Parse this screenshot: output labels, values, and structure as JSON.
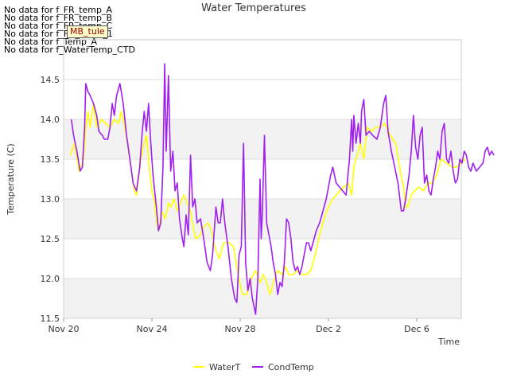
{
  "no_data_messages": [
    "No data for f_FR_temp_A",
    "No data for f_FR_temp_B",
    "No data for f_FR_temp_C",
    "No data for f_FD_Temp_1",
    "No data for f_Temp_A",
    "No data for f_WaterTemp_CTD"
  ],
  "tag_label": "MB_tule",
  "chart_data": {
    "type": "line",
    "title": "Water Temperatures",
    "xlabel": "Time",
    "ylabel": "Temperature (C)",
    "ylim": [
      11.5,
      15.0
    ],
    "xlim": [
      0,
      18
    ],
    "xticks": [
      {
        "x": 0,
        "label": "Nov 20"
      },
      {
        "x": 4,
        "label": "Nov 24"
      },
      {
        "x": 8,
        "label": "Nov 28"
      },
      {
        "x": 12,
        "label": "Dec 2"
      },
      {
        "x": 16,
        "label": "Dec 6"
      }
    ],
    "yticks": [
      11.5,
      12.0,
      12.5,
      13.0,
      13.5,
      14.0,
      14.5
    ],
    "grid": true,
    "legend_position": "bottom-center",
    "series": [
      {
        "name": "WaterT",
        "color": "#ffff00",
        "points": [
          [
            0.3,
            13.55
          ],
          [
            0.5,
            13.7
          ],
          [
            0.7,
            13.35
          ],
          [
            0.9,
            13.5
          ],
          [
            1.0,
            13.9
          ],
          [
            1.1,
            14.1
          ],
          [
            1.2,
            13.9
          ],
          [
            1.35,
            14.2
          ],
          [
            1.5,
            13.9
          ],
          [
            1.7,
            14.0
          ],
          [
            1.9,
            13.95
          ],
          [
            2.1,
            13.9
          ],
          [
            2.3,
            14.0
          ],
          [
            2.5,
            13.95
          ],
          [
            2.6,
            14.1
          ],
          [
            2.75,
            13.95
          ],
          [
            3.0,
            13.5
          ],
          [
            3.2,
            13.1
          ],
          [
            3.3,
            13.05
          ],
          [
            3.5,
            13.5
          ],
          [
            3.6,
            13.65
          ],
          [
            3.75,
            13.8
          ],
          [
            3.85,
            13.5
          ],
          [
            4.0,
            13.1
          ],
          [
            4.1,
            13.0
          ],
          [
            4.2,
            12.75
          ],
          [
            4.3,
            12.6
          ],
          [
            4.45,
            12.85
          ],
          [
            4.6,
            12.75
          ],
          [
            4.75,
            12.95
          ],
          [
            4.85,
            12.9
          ],
          [
            5.0,
            13.0
          ],
          [
            5.15,
            12.85
          ],
          [
            5.3,
            12.95
          ],
          [
            5.45,
            13.05
          ],
          [
            5.6,
            12.95
          ],
          [
            5.75,
            12.85
          ],
          [
            5.9,
            12.6
          ],
          [
            6.0,
            12.5
          ],
          [
            6.2,
            12.55
          ],
          [
            6.35,
            12.65
          ],
          [
            6.55,
            12.7
          ],
          [
            6.7,
            12.6
          ],
          [
            6.9,
            12.35
          ],
          [
            7.05,
            12.25
          ],
          [
            7.25,
            12.45
          ],
          [
            7.5,
            12.45
          ],
          [
            7.7,
            12.4
          ],
          [
            7.9,
            12.05
          ],
          [
            8.1,
            11.8
          ],
          [
            8.3,
            11.8
          ],
          [
            8.5,
            12.0
          ],
          [
            8.7,
            12.1
          ],
          [
            8.9,
            11.95
          ],
          [
            9.05,
            12.05
          ],
          [
            9.2,
            11.95
          ],
          [
            9.35,
            11.8
          ],
          [
            9.5,
            11.95
          ],
          [
            9.7,
            12.1
          ],
          [
            9.9,
            12.05
          ],
          [
            10.05,
            12.15
          ],
          [
            10.2,
            12.05
          ],
          [
            10.4,
            12.05
          ],
          [
            10.6,
            12.1
          ],
          [
            10.8,
            12.05
          ],
          [
            11.0,
            12.05
          ],
          [
            11.2,
            12.1
          ],
          [
            11.4,
            12.3
          ],
          [
            11.6,
            12.55
          ],
          [
            11.8,
            12.75
          ],
          [
            12.0,
            12.9
          ],
          [
            12.2,
            13.0
          ],
          [
            12.35,
            13.05
          ],
          [
            12.5,
            13.1
          ],
          [
            12.7,
            13.15
          ],
          [
            12.9,
            13.2
          ],
          [
            13.05,
            13.05
          ],
          [
            13.15,
            13.4
          ],
          [
            13.3,
            13.55
          ],
          [
            13.45,
            13.7
          ],
          [
            13.6,
            13.5
          ],
          [
            13.75,
            13.9
          ],
          [
            13.95,
            13.85
          ],
          [
            14.15,
            13.9
          ],
          [
            14.35,
            13.9
          ],
          [
            14.55,
            13.95
          ],
          [
            14.8,
            13.8
          ],
          [
            15.05,
            13.7
          ],
          [
            15.25,
            13.35
          ],
          [
            15.4,
            13.15
          ],
          [
            15.5,
            12.9
          ],
          [
            15.6,
            12.9
          ],
          [
            15.75,
            13.05
          ],
          [
            15.9,
            13.1
          ],
          [
            16.1,
            13.15
          ],
          [
            16.3,
            13.1
          ],
          [
            16.5,
            13.2
          ],
          [
            16.7,
            13.2
          ],
          [
            16.9,
            13.3
          ],
          [
            17.1,
            13.5
          ],
          [
            17.35,
            13.45
          ],
          [
            17.6,
            13.4
          ],
          [
            17.8,
            13.4
          ],
          [
            18.0,
            13.45
          ],
          [
            18.2,
            13.5
          ]
        ]
      },
      {
        "name": "CondTemp",
        "color": "#a020f0",
        "points": [
          [
            0.35,
            14.0
          ],
          [
            0.45,
            13.8
          ],
          [
            0.6,
            13.6
          ],
          [
            0.75,
            13.35
          ],
          [
            0.85,
            13.4
          ],
          [
            0.95,
            13.9
          ],
          [
            1.0,
            14.45
          ],
          [
            1.1,
            14.35
          ],
          [
            1.2,
            14.3
          ],
          [
            1.35,
            14.2
          ],
          [
            1.5,
            14.05
          ],
          [
            1.6,
            13.85
          ],
          [
            1.75,
            13.8
          ],
          [
            1.85,
            13.75
          ],
          [
            2.0,
            13.75
          ],
          [
            2.1,
            13.9
          ],
          [
            2.2,
            14.2
          ],
          [
            2.3,
            14.05
          ],
          [
            2.4,
            14.3
          ],
          [
            2.55,
            14.45
          ],
          [
            2.7,
            14.2
          ],
          [
            2.85,
            13.8
          ],
          [
            3.0,
            13.5
          ],
          [
            3.15,
            13.2
          ],
          [
            3.3,
            13.1
          ],
          [
            3.45,
            13.4
          ],
          [
            3.55,
            13.8
          ],
          [
            3.65,
            14.1
          ],
          [
            3.75,
            13.85
          ],
          [
            3.85,
            14.2
          ],
          [
            3.95,
            13.7
          ],
          [
            4.05,
            13.3
          ],
          [
            4.2,
            12.9
          ],
          [
            4.3,
            12.6
          ],
          [
            4.4,
            12.7
          ],
          [
            4.5,
            13.4
          ],
          [
            4.58,
            14.7
          ],
          [
            4.65,
            13.6
          ],
          [
            4.75,
            14.55
          ],
          [
            4.85,
            13.35
          ],
          [
            4.95,
            13.6
          ],
          [
            5.05,
            13.1
          ],
          [
            5.15,
            13.2
          ],
          [
            5.25,
            12.75
          ],
          [
            5.35,
            12.55
          ],
          [
            5.45,
            12.4
          ],
          [
            5.55,
            12.8
          ],
          [
            5.65,
            12.55
          ],
          [
            5.75,
            13.55
          ],
          [
            5.85,
            12.9
          ],
          [
            5.95,
            13.0
          ],
          [
            6.05,
            12.7
          ],
          [
            6.2,
            12.75
          ],
          [
            6.35,
            12.5
          ],
          [
            6.5,
            12.2
          ],
          [
            6.65,
            12.1
          ],
          [
            6.75,
            12.3
          ],
          [
            6.9,
            12.9
          ],
          [
            7.0,
            12.7
          ],
          [
            7.1,
            12.7
          ],
          [
            7.2,
            13.0
          ],
          [
            7.3,
            12.7
          ],
          [
            7.45,
            12.4
          ],
          [
            7.6,
            12.0
          ],
          [
            7.75,
            11.75
          ],
          [
            7.85,
            11.7
          ],
          [
            7.95,
            12.3
          ],
          [
            8.05,
            12.4
          ],
          [
            8.15,
            13.7
          ],
          [
            8.25,
            12.2
          ],
          [
            8.35,
            11.85
          ],
          [
            8.45,
            12.0
          ],
          [
            8.55,
            11.75
          ],
          [
            8.7,
            11.55
          ],
          [
            8.8,
            12.0
          ],
          [
            8.9,
            13.25
          ],
          [
            8.95,
            12.5
          ],
          [
            9.0,
            12.8
          ],
          [
            9.1,
            13.8
          ],
          [
            9.2,
            12.7
          ],
          [
            9.3,
            12.55
          ],
          [
            9.4,
            12.4
          ],
          [
            9.5,
            12.2
          ],
          [
            9.6,
            12.05
          ],
          [
            9.7,
            11.8
          ],
          [
            9.8,
            11.95
          ],
          [
            9.9,
            11.9
          ],
          [
            10.0,
            12.2
          ],
          [
            10.1,
            12.75
          ],
          [
            10.2,
            12.7
          ],
          [
            10.3,
            12.5
          ],
          [
            10.4,
            12.2
          ],
          [
            10.5,
            12.1
          ],
          [
            10.6,
            12.15
          ],
          [
            10.7,
            12.05
          ],
          [
            10.8,
            12.15
          ],
          [
            10.9,
            12.3
          ],
          [
            11.0,
            12.45
          ],
          [
            11.1,
            12.45
          ],
          [
            11.2,
            12.35
          ],
          [
            11.3,
            12.45
          ],
          [
            11.45,
            12.6
          ],
          [
            11.6,
            12.7
          ],
          [
            11.75,
            12.85
          ],
          [
            11.9,
            13.0
          ],
          [
            12.0,
            13.15
          ],
          [
            12.1,
            13.3
          ],
          [
            12.2,
            13.4
          ],
          [
            12.35,
            13.2
          ],
          [
            12.5,
            13.15
          ],
          [
            12.65,
            13.1
          ],
          [
            12.8,
            13.05
          ],
          [
            12.95,
            13.5
          ],
          [
            13.05,
            14.0
          ],
          [
            13.1,
            13.6
          ],
          [
            13.15,
            14.05
          ],
          [
            13.25,
            13.7
          ],
          [
            13.35,
            13.95
          ],
          [
            13.45,
            13.7
          ],
          [
            13.5,
            14.1
          ],
          [
            13.6,
            14.25
          ],
          [
            13.7,
            13.8
          ],
          [
            13.85,
            13.85
          ],
          [
            14.0,
            13.8
          ],
          [
            14.2,
            13.75
          ],
          [
            14.35,
            13.9
          ],
          [
            14.5,
            14.2
          ],
          [
            14.6,
            14.3
          ],
          [
            14.7,
            13.85
          ],
          [
            14.85,
            13.6
          ],
          [
            15.0,
            13.4
          ],
          [
            15.15,
            13.2
          ],
          [
            15.3,
            12.85
          ],
          [
            15.4,
            12.85
          ],
          [
            15.5,
            13.0
          ],
          [
            15.65,
            13.3
          ],
          [
            15.75,
            13.6
          ],
          [
            15.85,
            14.05
          ],
          [
            15.95,
            13.65
          ],
          [
            16.05,
            13.5
          ],
          [
            16.15,
            13.8
          ],
          [
            16.25,
            13.9
          ],
          [
            16.35,
            13.2
          ],
          [
            16.45,
            13.3
          ],
          [
            16.55,
            13.1
          ],
          [
            16.65,
            13.05
          ],
          [
            16.75,
            13.25
          ],
          [
            16.85,
            13.4
          ],
          [
            16.95,
            13.6
          ],
          [
            17.05,
            13.5
          ],
          [
            17.15,
            13.85
          ],
          [
            17.25,
            13.95
          ],
          [
            17.35,
            13.5
          ],
          [
            17.45,
            13.45
          ],
          [
            17.55,
            13.6
          ],
          [
            17.65,
            13.35
          ],
          [
            17.75,
            13.2
          ],
          [
            17.85,
            13.25
          ],
          [
            17.95,
            13.5
          ],
          [
            18.05,
            13.45
          ],
          [
            18.15,
            13.6
          ],
          [
            18.25,
            13.55
          ],
          [
            18.35,
            13.4
          ],
          [
            18.45,
            13.35
          ],
          [
            18.55,
            13.45
          ],
          [
            18.7,
            13.35
          ],
          [
            18.85,
            13.4
          ],
          [
            19.0,
            13.45
          ],
          [
            19.1,
            13.6
          ],
          [
            19.2,
            13.65
          ],
          [
            19.3,
            13.55
          ],
          [
            19.4,
            13.6
          ],
          [
            19.5,
            13.55
          ]
        ]
      }
    ]
  }
}
